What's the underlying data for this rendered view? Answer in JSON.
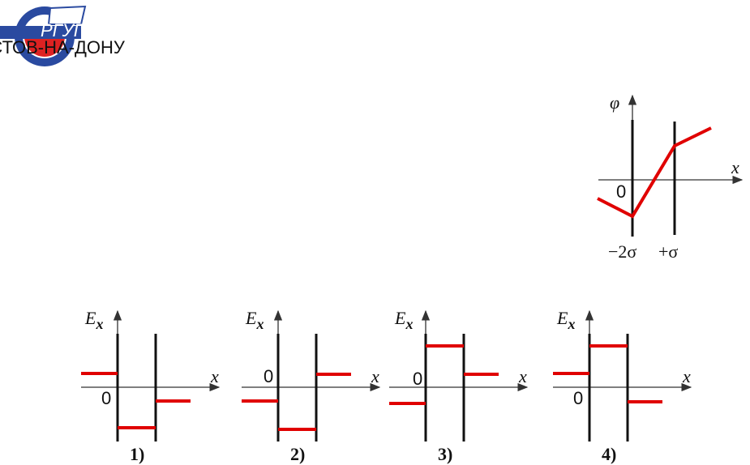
{
  "logo": {
    "name": "РГУПС",
    "city": "РОСТОВ-НА-ДОНУ"
  },
  "potential_graph": {
    "y_label": "φ",
    "x_label": "x",
    "origin": "0",
    "left_plate": "−2σ",
    "right_plate": "+σ"
  },
  "options": [
    {
      "y_label": "E",
      "y_sub": "x",
      "x_label": "x",
      "origin": "0",
      "caption": "1)"
    },
    {
      "y_label": "E",
      "y_sub": "x",
      "x_label": "x",
      "origin": "0",
      "caption": "2)"
    },
    {
      "y_label": "E",
      "y_sub": "x",
      "x_label": "x",
      "origin": "0",
      "caption": "3)"
    },
    {
      "y_label": "E",
      "y_sub": "x",
      "x_label": "x",
      "origin": "0",
      "caption": "4)"
    }
  ]
}
